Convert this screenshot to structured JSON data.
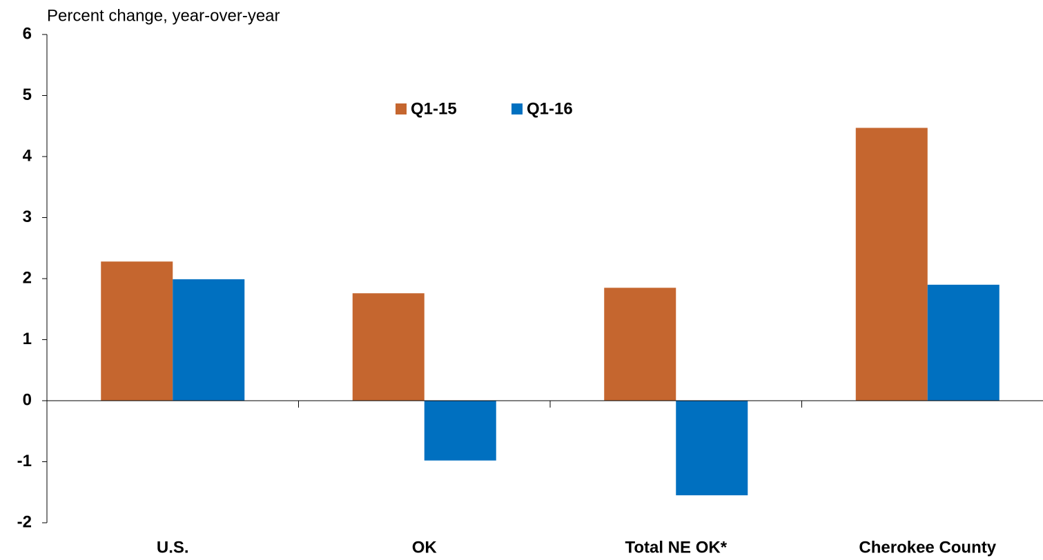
{
  "chart_data": {
    "type": "bar",
    "y_label": "Percent change,  year-over-year",
    "categories": [
      "U.S.",
      "OK",
      "Total NE OK*",
      "Cherokee County"
    ],
    "series": [
      {
        "name": "Q1-15",
        "color": "#c5662f",
        "values": [
          2.28,
          1.76,
          1.85,
          4.47
        ]
      },
      {
        "name": "Q1-16",
        "color": "#0070c0",
        "values": [
          1.99,
          -0.98,
          -1.55,
          1.9
        ]
      }
    ],
    "ylim": [
      -2,
      6
    ],
    "yticks": [
      -2,
      -1,
      0,
      1,
      2,
      3,
      4,
      5,
      6
    ],
    "grid": false,
    "legend": "top"
  }
}
